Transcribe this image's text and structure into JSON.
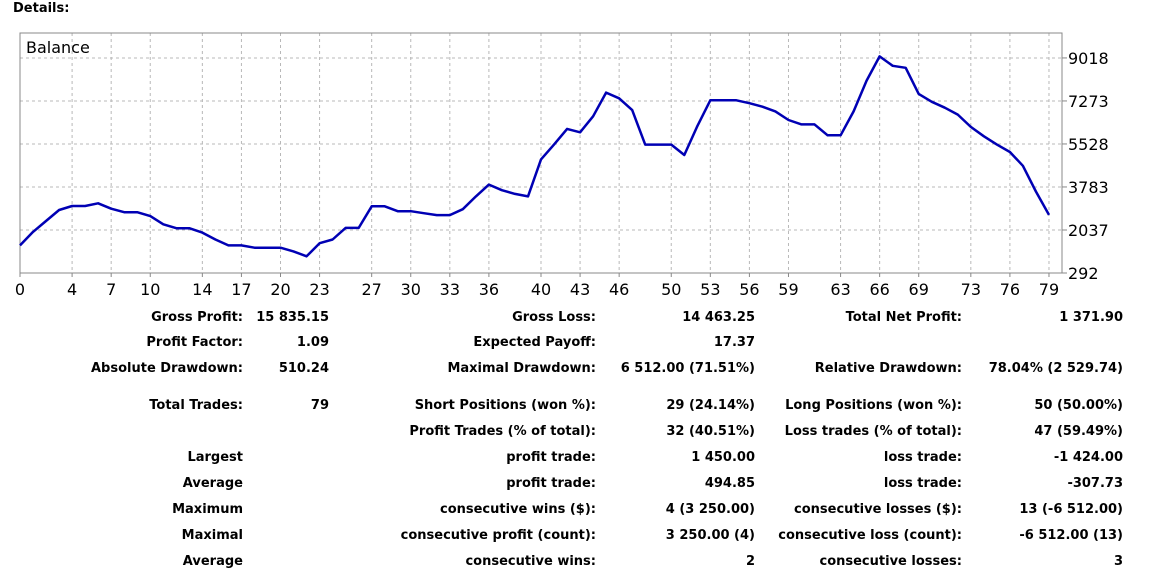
{
  "header": "Details:",
  "chart_data": {
    "type": "line",
    "title": "Balance",
    "series": [
      {
        "name": "Balance",
        "color": "#0000b4",
        "x": [
          0,
          1,
          2,
          3,
          4,
          5,
          6,
          7,
          8,
          9,
          10,
          11,
          12,
          13,
          14,
          15,
          16,
          17,
          18,
          19,
          20,
          21,
          22,
          23,
          24,
          25,
          26,
          27,
          28,
          29,
          30,
          31,
          32,
          33,
          34,
          35,
          36,
          37,
          38,
          39,
          40,
          41,
          42,
          43,
          44,
          45,
          46,
          47,
          48,
          49,
          50,
          51,
          52,
          53,
          54,
          55,
          56,
          57,
          58,
          59,
          60,
          61,
          62,
          63,
          64,
          65,
          66,
          67,
          68,
          69,
          70,
          71,
          72,
          73,
          74,
          75,
          76,
          77,
          78,
          79
        ],
        "values": [
          1410,
          1960,
          2400,
          2850,
          3010,
          3010,
          3120,
          2900,
          2760,
          2760,
          2600,
          2270,
          2110,
          2110,
          1930,
          1650,
          1410,
          1410,
          1320,
          1320,
          1320,
          1170,
          970,
          1500,
          1650,
          2120,
          2120,
          3000,
          3000,
          2800,
          2800,
          2720,
          2640,
          2640,
          2880,
          3400,
          3880,
          3650,
          3500,
          3400,
          4900,
          5500,
          6140,
          6000,
          6650,
          7610,
          7380,
          6900,
          5500,
          5500,
          5500,
          5080,
          6250,
          7300,
          7300,
          7300,
          7180,
          7040,
          6850,
          6500,
          6320,
          6320,
          5880,
          5880,
          6850,
          8100,
          9080,
          8700,
          8620,
          7560,
          7240,
          7000,
          6720,
          6220,
          5840,
          5500,
          5200,
          4640,
          3600,
          2650
        ]
      }
    ],
    "xticks": [
      0,
      4,
      7,
      10,
      14,
      17,
      20,
      23,
      27,
      30,
      33,
      36,
      40,
      43,
      46,
      50,
      53,
      56,
      59,
      63,
      66,
      69,
      73,
      76,
      79
    ],
    "yticks": [
      292,
      2037,
      3783,
      5528,
      7273,
      9018
    ],
    "xlim": [
      0,
      80
    ],
    "ylim": [
      292,
      10030
    ],
    "grid": true
  },
  "stats": {
    "gross_profit": {
      "label": "Gross Profit:",
      "value": "15 835.15"
    },
    "gross_loss": {
      "label": "Gross Loss:",
      "value": "14 463.25"
    },
    "total_net_profit": {
      "label": "Total Net Profit:",
      "value": "1 371.90"
    },
    "profit_factor": {
      "label": "Profit Factor:",
      "value": "1.09"
    },
    "expected_payoff": {
      "label": "Expected Payoff:",
      "value": "17.37"
    },
    "absolute_drawdown": {
      "label": "Absolute Drawdown:",
      "value": "510.24"
    },
    "maximal_drawdown": {
      "label": "Maximal Drawdown:",
      "value": "6 512.00 (71.51%)"
    },
    "relative_drawdown": {
      "label": "Relative Drawdown:",
      "value": "78.04% (2 529.74)"
    },
    "total_trades": {
      "label": "Total Trades:",
      "value": "79"
    },
    "short_positions": {
      "label": "Short Positions (won %):",
      "value": "29 (24.14%)"
    },
    "long_positions": {
      "label": "Long Positions (won %):",
      "value": "50 (50.00%)"
    },
    "profit_trades": {
      "label": "Profit Trades (% of total):",
      "value": "32 (40.51%)"
    },
    "loss_trades": {
      "label": "Loss trades (% of total):",
      "value": "47 (59.49%)"
    },
    "largest": {
      "label": "Largest",
      "profit_label": "profit trade:",
      "profit_value": "1 450.00",
      "loss_label": "loss trade:",
      "loss_value": "-1 424.00"
    },
    "average": {
      "label": "Average",
      "profit_label": "profit trade:",
      "profit_value": "494.85",
      "loss_label": "loss trade:",
      "loss_value": "-307.73"
    },
    "maximum": {
      "label": "Maximum",
      "wins_label": "consecutive wins ($):",
      "wins_value": "4 (3 250.00)",
      "losses_label": "consecutive losses ($):",
      "losses_value": "13 (-6 512.00)"
    },
    "maximal": {
      "label": "Maximal",
      "profit_label": "consecutive profit (count):",
      "profit_value": "3 250.00 (4)",
      "loss_label": "consecutive loss (count):",
      "loss_value": "-6 512.00 (13)"
    },
    "average_consecutive": {
      "label": "Average",
      "wins_label": "consecutive wins:",
      "wins_value": "2",
      "losses_label": "consecutive losses:",
      "losses_value": "3"
    }
  }
}
